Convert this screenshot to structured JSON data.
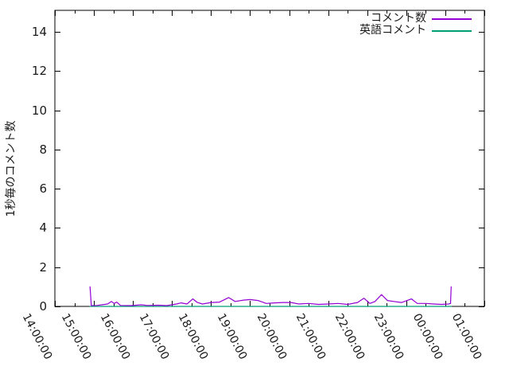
{
  "chart_data": {
    "type": "line",
    "title": "",
    "xlabel": "",
    "ylabel": "1秒毎のコメント数",
    "x_ticks": [
      "14:00:00",
      "15:00:00",
      "16:00:00",
      "17:00:00",
      "18:00:00",
      "19:00:00",
      "20:00:00",
      "21:00:00",
      "22:00:00",
      "23:00:00",
      "00:00:00",
      "01:00:00"
    ],
    "y_ticks": [
      "0",
      "2",
      "4",
      "6",
      "8",
      "10",
      "12",
      "14"
    ],
    "xlim_hours": [
      "14:00",
      "25:00"
    ],
    "ylim": [
      0,
      15.1
    ],
    "x_minor_tick_minutes": 30,
    "grid": false,
    "legend_position": "top-right-inside",
    "axis_color": "#000000",
    "background_color": "#ffffff",
    "series": [
      {
        "name": "コメント数",
        "color": "#9400d3",
        "points": [
          [
            "14:54",
            1.0
          ],
          [
            "14:56",
            0.04
          ],
          [
            "15:05",
            0.05
          ],
          [
            "15:21",
            0.12
          ],
          [
            "15:27",
            0.25
          ],
          [
            "15:31",
            0.15
          ],
          [
            "15:35",
            0.22
          ],
          [
            "15:41",
            0.05
          ],
          [
            "15:57",
            0.04
          ],
          [
            "16:13",
            0.08
          ],
          [
            "16:22",
            0.05
          ],
          [
            "16:40",
            0.06
          ],
          [
            "16:52",
            0.04
          ],
          [
            "17:07",
            0.12
          ],
          [
            "17:14",
            0.18
          ],
          [
            "17:23",
            0.12
          ],
          [
            "17:32",
            0.38
          ],
          [
            "17:39",
            0.2
          ],
          [
            "17:47",
            0.12
          ],
          [
            "18:00",
            0.2
          ],
          [
            "18:13",
            0.22
          ],
          [
            "18:27",
            0.45
          ],
          [
            "18:37",
            0.25
          ],
          [
            "18:50",
            0.32
          ],
          [
            "19:00",
            0.35
          ],
          [
            "19:12",
            0.3
          ],
          [
            "19:25",
            0.15
          ],
          [
            "19:37",
            0.18
          ],
          [
            "19:50",
            0.2
          ],
          [
            "20:03",
            0.2
          ],
          [
            "20:15",
            0.12
          ],
          [
            "20:30",
            0.15
          ],
          [
            "20:45",
            0.1
          ],
          [
            "21:00",
            0.12
          ],
          [
            "21:15",
            0.15
          ],
          [
            "21:30",
            0.1
          ],
          [
            "21:45",
            0.2
          ],
          [
            "21:55",
            0.42
          ],
          [
            "22:04",
            0.15
          ],
          [
            "22:12",
            0.25
          ],
          [
            "22:22",
            0.6
          ],
          [
            "22:31",
            0.3
          ],
          [
            "22:41",
            0.25
          ],
          [
            "22:53",
            0.2
          ],
          [
            "23:08",
            0.38
          ],
          [
            "23:17",
            0.15
          ],
          [
            "23:30",
            0.15
          ],
          [
            "23:42",
            0.12
          ],
          [
            "23:54",
            0.1
          ],
          [
            "24:05",
            0.12
          ],
          [
            "24:08",
            0.15
          ],
          [
            "24:09",
            1.0
          ]
        ]
      },
      {
        "name": "英語コメント",
        "color": "#009e73",
        "points": [
          [
            "14:54",
            0
          ],
          [
            "16:00",
            0
          ],
          [
            "17:00",
            0
          ],
          [
            "18:00",
            0
          ],
          [
            "19:00",
            0
          ],
          [
            "20:00",
            0
          ],
          [
            "21:00",
            0
          ],
          [
            "22:00",
            0
          ],
          [
            "23:00",
            0
          ],
          [
            "24:09",
            0
          ]
        ]
      }
    ]
  },
  "legend": {
    "items": [
      {
        "label": "コメント数"
      },
      {
        "label": "英語コメント"
      }
    ]
  }
}
